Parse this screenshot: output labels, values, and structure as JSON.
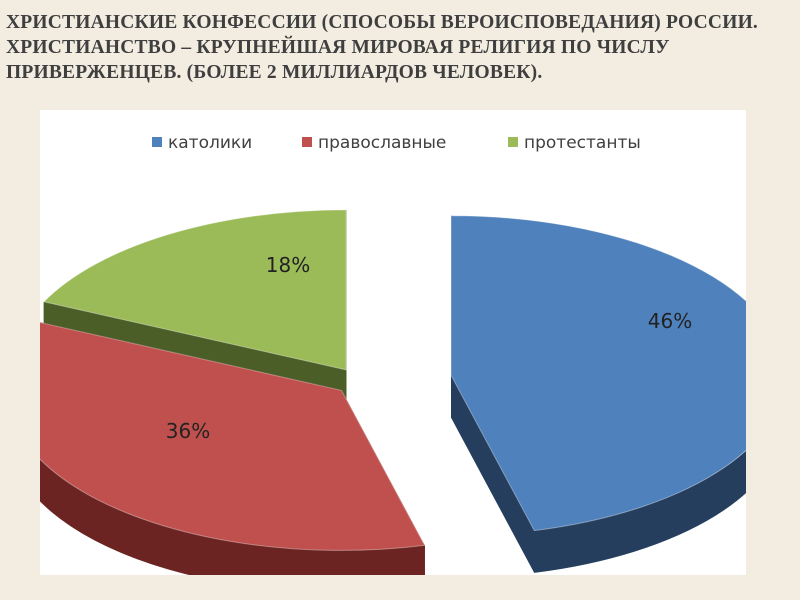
{
  "slide": {
    "title_lines": [
      "ХРИСТИАНСКИЕ КОНФЕССИИ (СПОСОБЫ ВЕРОИСПОВЕДАНИЯ) РОССИИ.",
      "ХРИСТИАНСТВО – КРУПНЕЙШАЯ МИРОВАЯ РЕЛИГИЯ ПО ЧИСЛУ",
      "ПРИВЕРЖЕНЦЕВ. (БОЛЕЕ 2 МИЛЛИАРДОВ ЧЕЛОВЕК)."
    ]
  },
  "chart_data": {
    "type": "pie",
    "exploded_3d": true,
    "legend_position": "top",
    "categories": [
      "католики",
      "православные",
      "протестанты"
    ],
    "values": [
      46,
      36,
      18
    ],
    "data_labels": [
      "46%",
      "36%",
      "18%"
    ],
    "colors": {
      "top": [
        "#4f81bd",
        "#c0504d",
        "#9bbb59"
      ],
      "side": [
        "#253e5e",
        "#6b2422",
        "#4b5e27"
      ]
    }
  }
}
